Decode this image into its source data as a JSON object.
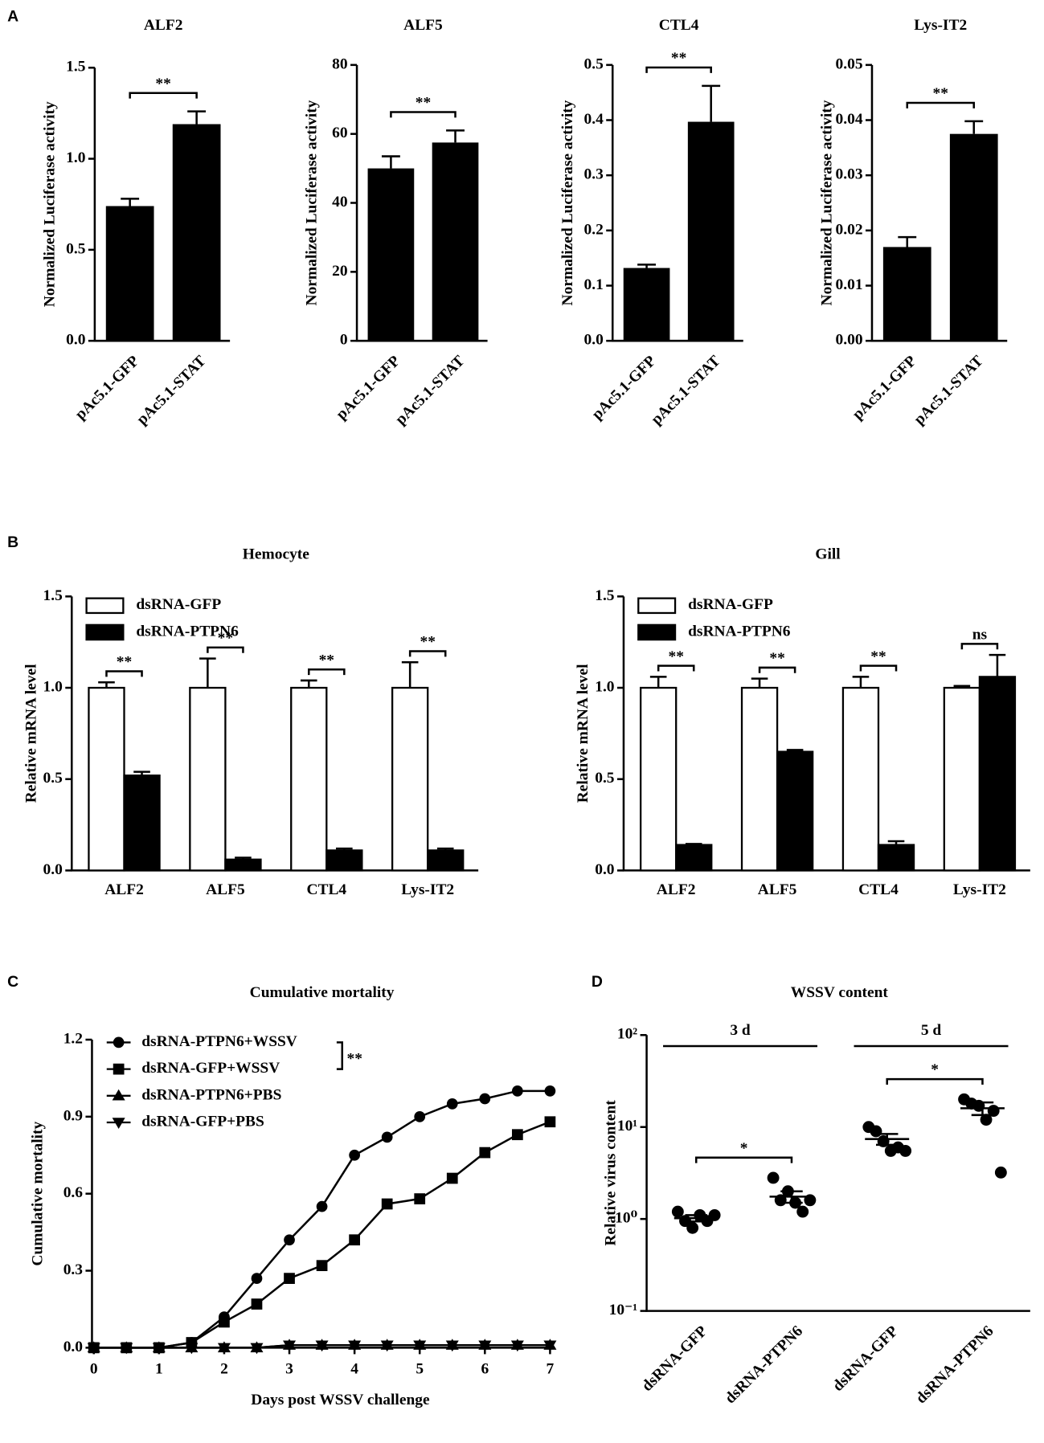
{
  "panel_labels": [
    "A",
    "B",
    "C",
    "D"
  ],
  "chart_data": [
    {
      "type": "bar",
      "title": "ALF2",
      "ylabel": "Normalized Luciferase activity",
      "categories": [
        "pAc5.1-GFP",
        "pAc5.1-STAT"
      ],
      "values": [
        0.74,
        1.19
      ],
      "errors": [
        0.04,
        0.07
      ],
      "color": "#000000",
      "ylim": [
        0,
        1.5
      ],
      "yticks": [
        {
          "value": 0,
          "label": "0.0"
        },
        0.5,
        {
          "value": 1,
          "label": "1.0"
        },
        1.5
      ],
      "annotations": [
        "**"
      ]
    },
    {
      "type": "bar",
      "title": "ALF5",
      "ylabel": "Normalized Luciferase activity",
      "categories": [
        "pAc5.1-GFP",
        "pAc5.1-STAT"
      ],
      "values": [
        50,
        57.5
      ],
      "errors": [
        3.5,
        3.5
      ],
      "color": "#000000",
      "ylim": [
        0,
        80
      ],
      "yticks": [
        0,
        20,
        40,
        60,
        80
      ],
      "annotations": [
        "**"
      ]
    },
    {
      "type": "bar",
      "title": "CTL4",
      "ylabel": "Normalized Luciferase activity",
      "categories": [
        "pAc5.1-GFP",
        "pAc5.1-STAT"
      ],
      "values": [
        0.132,
        0.397
      ],
      "errors": [
        0.006,
        0.065
      ],
      "color": "#000000",
      "ylim": [
        0,
        0.5
      ],
      "yticks": [
        {
          "value": 0,
          "label": "0.0"
        },
        0.1,
        0.2,
        0.3,
        0.4,
        0.5
      ],
      "annotations": [
        "**"
      ]
    },
    {
      "type": "bar",
      "title": "Lys-IT2",
      "ylabel": "Normalized Luciferase activity",
      "categories": [
        "pAc5.1-GFP",
        "pAc5.1-STAT"
      ],
      "values": [
        0.017,
        0.0375
      ],
      "errors": [
        0.0018,
        0.0023
      ],
      "color": "#000000",
      "ylim": [
        0,
        0.05
      ],
      "yticks": [
        {
          "value": 0,
          "label": "0.00"
        },
        0.01,
        0.02,
        0.03,
        0.04,
        0.05
      ],
      "annotations": [
        "**"
      ]
    },
    {
      "type": "grouped_bar",
      "title": "Hemocyte",
      "ylabel": "Relative mRNA level",
      "categories": [
        "ALF2",
        "ALF5",
        "CTL4",
        "Lys-IT2"
      ],
      "series": [
        {
          "name": "dsRNA-GFP",
          "color": "#ffffff",
          "values": [
            1,
            1,
            1,
            1
          ],
          "errors": [
            0.03,
            0.16,
            0.04,
            0.14
          ]
        },
        {
          "name": "dsRNA-PTPN6",
          "color": "#000000",
          "values": [
            0.52,
            0.06,
            0.11,
            0.11
          ],
          "errors": [
            0.02,
            0.01,
            0.01,
            0.01
          ]
        }
      ],
      "ylim": [
        0,
        1.5
      ],
      "yticks": [
        {
          "value": 0,
          "label": "0.0"
        },
        0.5,
        {
          "value": 1,
          "label": "1.0"
        },
        1.5
      ],
      "legend": "upper left",
      "annotations": [
        "**",
        "**",
        "**",
        "**"
      ]
    },
    {
      "type": "grouped_bar",
      "title": "Gill",
      "ylabel": "Relative mRNA level",
      "categories": [
        "ALF2",
        "ALF5",
        "CTL4",
        "Lys-IT2"
      ],
      "series": [
        {
          "name": "dsRNA-GFP",
          "color": "#ffffff",
          "values": [
            1,
            1,
            1,
            1
          ],
          "errors": [
            0.06,
            0.05,
            0.06,
            0.01
          ]
        },
        {
          "name": "dsRNA-PTPN6",
          "color": "#000000",
          "values": [
            0.14,
            0.65,
            0.14,
            1.06
          ],
          "errors": [
            0.005,
            0.01,
            0.02,
            0.12
          ]
        }
      ],
      "ylim": [
        0,
        1.5
      ],
      "yticks": [
        {
          "value": 0,
          "label": "0.0"
        },
        0.5,
        {
          "value": 1,
          "label": "1.0"
        },
        1.5
      ],
      "legend": "upper left",
      "annotations": [
        "**",
        "**",
        "**",
        "ns"
      ]
    },
    {
      "type": "line",
      "title": "Cumulative mortality",
      "xlabel": "Days post WSSV challenge",
      "ylabel": "Cumulative mortality",
      "x": [
        0,
        0.5,
        1,
        1.5,
        2,
        2.5,
        3,
        3.5,
        4,
        4.5,
        5,
        5.5,
        6,
        6.5,
        7
      ],
      "series": [
        {
          "name": "dsRNA-PTPN6+WSSV",
          "color": "#000000",
          "marker": "circle",
          "values": [
            0,
            0,
            0,
            0.02,
            0.12,
            0.27,
            0.42,
            0.55,
            0.75,
            0.82,
            0.9,
            0.95,
            0.97,
            1.0,
            1.0
          ]
        },
        {
          "name": "dsRNA-GFP+WSSV",
          "color": "#000000",
          "marker": "square",
          "values": [
            0,
            0,
            0,
            0.02,
            0.1,
            0.17,
            0.27,
            0.32,
            0.42,
            0.56,
            0.58,
            0.66,
            0.76,
            0.83,
            0.88
          ]
        },
        {
          "name": "dsRNA-PTPN6+PBS",
          "color": "#000000",
          "marker": "triangle-up",
          "values": [
            0,
            0,
            0,
            0,
            0,
            0,
            0.01,
            0.01,
            0.01,
            0.01,
            0.01,
            0.01,
            0.01,
            0.01,
            0.01
          ]
        },
        {
          "name": "dsRNA-GFP+PBS",
          "color": "#000000",
          "marker": "triangle-down",
          "values": [
            0,
            0,
            0,
            0,
            0,
            0,
            0.01,
            0.01,
            0.01,
            0.01,
            0.01,
            0.01,
            0.01,
            0.01,
            0.01
          ]
        }
      ],
      "xlim": [
        0,
        7
      ],
      "xticks": [
        0,
        1,
        2,
        3,
        4,
        5,
        6,
        7
      ],
      "ylim": [
        0,
        1.2
      ],
      "yticks": [
        {
          "value": 0,
          "label": "0.0"
        },
        0.3,
        0.6,
        0.9,
        1.2
      ],
      "legend": "upper left",
      "annotations": [
        "**"
      ]
    },
    {
      "type": "scatter",
      "title": "WSSV content",
      "ylabel": "Relative virus content",
      "categories": [
        "dsRNA-GFP",
        "dsRNA-PTPN6",
        "dsRNA-GFP",
        "dsRNA-PTPN6"
      ],
      "points": [
        [
          1.2,
          0.95,
          0.8,
          1.1,
          0.95,
          1.1
        ],
        [
          2.8,
          1.6,
          2.0,
          1.5,
          1.2,
          1.6
        ],
        [
          10,
          9,
          7,
          5.5,
          6,
          5.5
        ],
        [
          20,
          18,
          17,
          12,
          15,
          3.2
        ]
      ],
      "means": [
        1.02,
        1.75,
        7.4,
        16
      ],
      "errors": [
        0.08,
        0.25,
        1.0,
        2.5
      ],
      "color": "#000000",
      "log": true,
      "ylim": [
        0.1,
        100
      ],
      "yticks": [
        {
          "value": 0.1,
          "label": "10⁻¹"
        },
        {
          "value": 1,
          "label": "10⁰"
        },
        {
          "value": 10,
          "label": "10¹"
        },
        {
          "value": 100,
          "label": "10²"
        }
      ],
      "group_labels": [
        "3 d",
        "5 d"
      ],
      "annotations": [
        "*",
        "*"
      ]
    }
  ]
}
